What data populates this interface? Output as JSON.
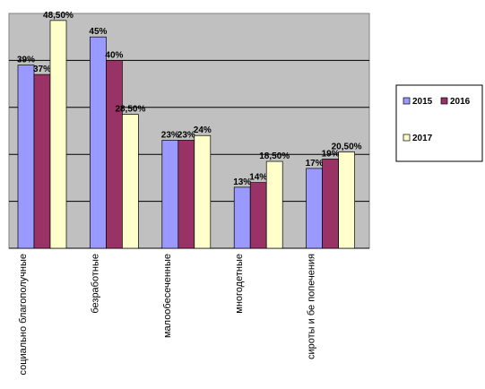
{
  "chart_data": {
    "type": "bar",
    "categories": [
      "социально благополучные",
      "безработные",
      "малообесеченные",
      "многодетные",
      "сироты и бе попечения"
    ],
    "series": [
      {
        "name": "2015",
        "values": [
          39,
          45,
          23,
          13,
          17
        ],
        "labels": [
          "39%",
          "45%",
          "23%",
          "13%",
          "17%"
        ],
        "color": "#9999ff"
      },
      {
        "name": "2016",
        "values": [
          37,
          40,
          23,
          14,
          19
        ],
        "labels": [
          "37%",
          "40%",
          "23%",
          "14%",
          "19%"
        ],
        "color": "#993366"
      },
      {
        "name": "2017",
        "values": [
          48.5,
          28.5,
          24,
          18.5,
          20.5
        ],
        "labels": [
          "48,50%",
          "28,50%",
          "24%",
          "18,50%",
          "20,50%"
        ],
        "color": "#ffffcc"
      }
    ],
    "ylim": [
      0,
      50
    ],
    "grid": true,
    "plot_background": "#c0c0c0",
    "legend_position": "right"
  }
}
